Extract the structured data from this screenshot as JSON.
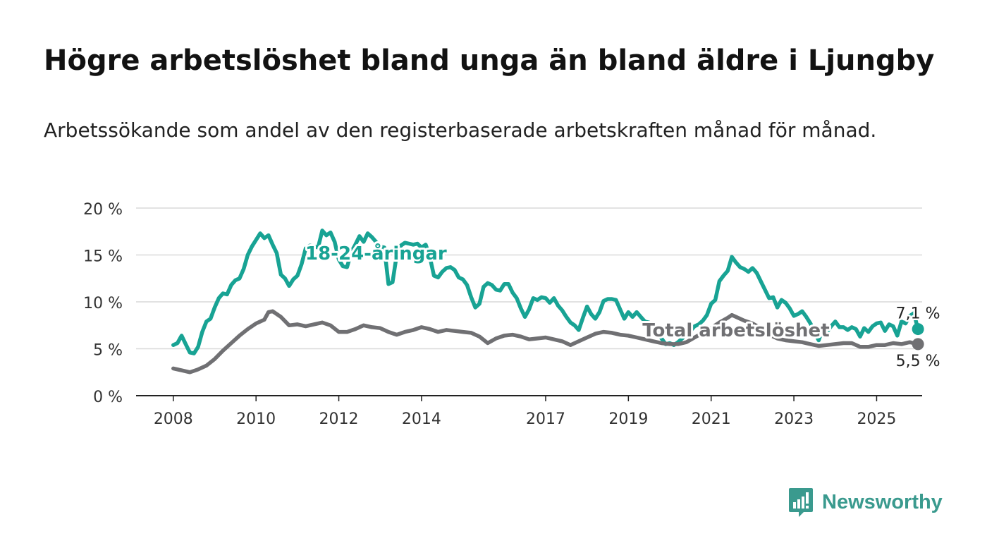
{
  "title": "Högre arbetslöshet bland unga än bland äldre i Ljungby",
  "subtitle": "Arbetssökande som andel av den registerbaserade arbetskraften månad för månad.",
  "brand": {
    "name": "Newsworthy",
    "icon": "bar-chart-speech-bubble-icon",
    "color": "#3a9a8e"
  },
  "chart_data": {
    "type": "line",
    "y_unit": "%",
    "ylim": [
      0,
      20
    ],
    "y_ticks": [
      {
        "value": 0,
        "label": "0 %"
      },
      {
        "value": 5,
        "label": "5 %"
      },
      {
        "value": 10,
        "label": "10 %"
      },
      {
        "value": 15,
        "label": "15 %"
      },
      {
        "value": 20,
        "label": "20 %"
      }
    ],
    "xlim": [
      2007.1,
      2026.1
    ],
    "x_ticks": [
      {
        "value": 2008,
        "label": "2008"
      },
      {
        "value": 2010,
        "label": "2010"
      },
      {
        "value": 2012,
        "label": "2012"
      },
      {
        "value": 2014,
        "label": "2014"
      },
      {
        "value": 2017,
        "label": "2017"
      },
      {
        "value": 2019,
        "label": "2019"
      },
      {
        "value": 2021,
        "label": "2021"
      },
      {
        "value": 2023,
        "label": "2023"
      },
      {
        "value": 2025,
        "label": "2025"
      }
    ],
    "grid": true,
    "series": [
      {
        "name": "18-24-åringar",
        "color": "#18a394",
        "label_at": {
          "x": 2012.9,
          "y": 14.5
        },
        "end_label": "7,1 %",
        "end_value": 7.1,
        "points": [
          [
            2008.0,
            5.4
          ],
          [
            2008.1,
            5.6
          ],
          [
            2008.2,
            6.4
          ],
          [
            2008.3,
            5.5
          ],
          [
            2008.4,
            4.6
          ],
          [
            2008.5,
            4.5
          ],
          [
            2008.6,
            5.2
          ],
          [
            2008.7,
            6.8
          ],
          [
            2008.8,
            7.9
          ],
          [
            2008.9,
            8.2
          ],
          [
            2009.0,
            9.4
          ],
          [
            2009.1,
            10.4
          ],
          [
            2009.2,
            10.9
          ],
          [
            2009.3,
            10.8
          ],
          [
            2009.4,
            11.8
          ],
          [
            2009.5,
            12.3
          ],
          [
            2009.6,
            12.5
          ],
          [
            2009.7,
            13.5
          ],
          [
            2009.8,
            15.0
          ],
          [
            2009.9,
            15.9
          ],
          [
            2010.0,
            16.6
          ],
          [
            2010.1,
            17.3
          ],
          [
            2010.2,
            16.8
          ],
          [
            2010.3,
            17.1
          ],
          [
            2010.4,
            16.1
          ],
          [
            2010.5,
            15.2
          ],
          [
            2010.6,
            12.9
          ],
          [
            2010.7,
            12.5
          ],
          [
            2010.8,
            11.7
          ],
          [
            2010.9,
            12.4
          ],
          [
            2011.0,
            12.8
          ],
          [
            2011.1,
            14.0
          ],
          [
            2011.2,
            15.7
          ],
          [
            2011.3,
            16.0
          ],
          [
            2011.4,
            15.9
          ],
          [
            2011.5,
            15.8
          ],
          [
            2011.6,
            17.6
          ],
          [
            2011.7,
            17.1
          ],
          [
            2011.8,
            17.4
          ],
          [
            2011.9,
            16.4
          ],
          [
            2012.0,
            14.5
          ],
          [
            2012.1,
            13.8
          ],
          [
            2012.2,
            13.7
          ],
          [
            2012.3,
            15.3
          ],
          [
            2012.4,
            16.1
          ],
          [
            2012.5,
            17.0
          ],
          [
            2012.6,
            16.4
          ],
          [
            2012.7,
            17.3
          ],
          [
            2012.8,
            16.9
          ],
          [
            2012.9,
            16.4
          ],
          [
            2013.0,
            15.9
          ],
          [
            2013.1,
            15.8
          ],
          [
            2013.2,
            11.9
          ],
          [
            2013.3,
            12.1
          ],
          [
            2013.4,
            15.0
          ],
          [
            2013.5,
            16.0
          ],
          [
            2013.6,
            16.3
          ],
          [
            2013.7,
            16.2
          ],
          [
            2013.8,
            16.1
          ],
          [
            2013.9,
            16.2
          ],
          [
            2014.0,
            15.8
          ],
          [
            2014.1,
            16.1
          ],
          [
            2014.2,
            14.8
          ],
          [
            2014.3,
            12.8
          ],
          [
            2014.4,
            12.6
          ],
          [
            2014.5,
            13.2
          ],
          [
            2014.6,
            13.6
          ],
          [
            2014.7,
            13.7
          ],
          [
            2014.8,
            13.4
          ],
          [
            2014.9,
            12.6
          ],
          [
            2015.0,
            12.4
          ],
          [
            2015.1,
            11.8
          ],
          [
            2015.2,
            10.5
          ],
          [
            2015.3,
            9.4
          ],
          [
            2015.4,
            9.8
          ],
          [
            2015.5,
            11.6
          ],
          [
            2015.6,
            12.0
          ],
          [
            2015.7,
            11.8
          ],
          [
            2015.8,
            11.3
          ],
          [
            2015.9,
            11.2
          ],
          [
            2016.0,
            11.9
          ],
          [
            2016.1,
            11.9
          ],
          [
            2016.2,
            11.0
          ],
          [
            2016.3,
            10.4
          ],
          [
            2016.4,
            9.3
          ],
          [
            2016.5,
            8.4
          ],
          [
            2016.6,
            9.2
          ],
          [
            2016.7,
            10.4
          ],
          [
            2016.8,
            10.2
          ],
          [
            2016.9,
            10.5
          ],
          [
            2017.0,
            10.4
          ],
          [
            2017.1,
            9.9
          ],
          [
            2017.2,
            10.4
          ],
          [
            2017.3,
            9.6
          ],
          [
            2017.4,
            9.1
          ],
          [
            2017.5,
            8.4
          ],
          [
            2017.6,
            7.8
          ],
          [
            2017.7,
            7.5
          ],
          [
            2017.8,
            7.0
          ],
          [
            2017.9,
            8.3
          ],
          [
            2018.0,
            9.5
          ],
          [
            2018.1,
            8.7
          ],
          [
            2018.2,
            8.2
          ],
          [
            2018.3,
            8.9
          ],
          [
            2018.4,
            10.1
          ],
          [
            2018.5,
            10.3
          ],
          [
            2018.6,
            10.3
          ],
          [
            2018.7,
            10.2
          ],
          [
            2018.8,
            9.2
          ],
          [
            2018.9,
            8.2
          ],
          [
            2019.0,
            8.9
          ],
          [
            2019.1,
            8.4
          ],
          [
            2019.2,
            8.9
          ],
          [
            2019.3,
            8.4
          ],
          [
            2019.4,
            7.9
          ],
          [
            2019.5,
            7.8
          ],
          [
            2019.6,
            7.5
          ],
          [
            2019.7,
            6.8
          ],
          [
            2019.8,
            6.1
          ],
          [
            2019.9,
            5.5
          ],
          [
            2020.0,
            5.6
          ],
          [
            2020.1,
            5.4
          ],
          [
            2020.2,
            5.7
          ],
          [
            2020.3,
            6.1
          ],
          [
            2020.4,
            6.5
          ],
          [
            2020.5,
            6.9
          ],
          [
            2020.6,
            7.4
          ],
          [
            2020.7,
            7.6
          ],
          [
            2020.8,
            8.0
          ],
          [
            2020.9,
            8.6
          ],
          [
            2021.0,
            9.8
          ],
          [
            2021.1,
            10.2
          ],
          [
            2021.2,
            12.2
          ],
          [
            2021.3,
            12.8
          ],
          [
            2021.4,
            13.3
          ],
          [
            2021.5,
            14.8
          ],
          [
            2021.6,
            14.2
          ],
          [
            2021.7,
            13.7
          ],
          [
            2021.8,
            13.5
          ],
          [
            2021.9,
            13.2
          ],
          [
            2022.0,
            13.6
          ],
          [
            2022.1,
            13.1
          ],
          [
            2022.2,
            12.2
          ],
          [
            2022.3,
            11.3
          ],
          [
            2022.4,
            10.4
          ],
          [
            2022.5,
            10.5
          ],
          [
            2022.6,
            9.4
          ],
          [
            2022.7,
            10.2
          ],
          [
            2022.8,
            9.9
          ],
          [
            2022.9,
            9.3
          ],
          [
            2023.0,
            8.5
          ],
          [
            2023.1,
            8.7
          ],
          [
            2023.2,
            9.0
          ],
          [
            2023.3,
            8.4
          ],
          [
            2023.4,
            7.7
          ],
          [
            2023.5,
            6.7
          ],
          [
            2023.6,
            5.9
          ],
          [
            2023.7,
            7.2
          ],
          [
            2023.8,
            6.8
          ],
          [
            2023.9,
            7.4
          ],
          [
            2024.0,
            7.9
          ],
          [
            2024.1,
            7.3
          ],
          [
            2024.2,
            7.3
          ],
          [
            2024.3,
            7.0
          ],
          [
            2024.4,
            7.3
          ],
          [
            2024.5,
            7.1
          ],
          [
            2024.6,
            6.3
          ],
          [
            2024.7,
            7.2
          ],
          [
            2024.8,
            6.8
          ],
          [
            2024.9,
            7.4
          ],
          [
            2025.0,
            7.7
          ],
          [
            2025.1,
            7.8
          ],
          [
            2025.2,
            6.9
          ],
          [
            2025.3,
            7.6
          ],
          [
            2025.4,
            7.4
          ],
          [
            2025.5,
            6.4
          ],
          [
            2025.6,
            7.9
          ],
          [
            2025.7,
            7.7
          ],
          [
            2025.8,
            8.5
          ],
          [
            2025.9,
            8.8
          ],
          [
            2026.0,
            7.1
          ]
        ]
      },
      {
        "name": "Total arbetslöshet",
        "color": "#707073",
        "label_at": {
          "x": 2021.6,
          "y": 6.3
        },
        "end_label": "5,5 %",
        "end_value": 5.5,
        "points": [
          [
            2008.0,
            2.9
          ],
          [
            2008.2,
            2.7
          ],
          [
            2008.4,
            2.5
          ],
          [
            2008.6,
            2.8
          ],
          [
            2008.8,
            3.2
          ],
          [
            2009.0,
            3.9
          ],
          [
            2009.2,
            4.8
          ],
          [
            2009.4,
            5.6
          ],
          [
            2009.6,
            6.4
          ],
          [
            2009.8,
            7.1
          ],
          [
            2010.0,
            7.7
          ],
          [
            2010.2,
            8.1
          ],
          [
            2010.3,
            8.9
          ],
          [
            2010.4,
            9.0
          ],
          [
            2010.6,
            8.4
          ],
          [
            2010.8,
            7.5
          ],
          [
            2011.0,
            7.6
          ],
          [
            2011.2,
            7.4
          ],
          [
            2011.4,
            7.6
          ],
          [
            2011.6,
            7.8
          ],
          [
            2011.8,
            7.5
          ],
          [
            2012.0,
            6.8
          ],
          [
            2012.2,
            6.8
          ],
          [
            2012.4,
            7.1
          ],
          [
            2012.6,
            7.5
          ],
          [
            2012.8,
            7.3
          ],
          [
            2013.0,
            7.2
          ],
          [
            2013.2,
            6.8
          ],
          [
            2013.4,
            6.5
          ],
          [
            2013.6,
            6.8
          ],
          [
            2013.8,
            7.0
          ],
          [
            2014.0,
            7.3
          ],
          [
            2014.2,
            7.1
          ],
          [
            2014.4,
            6.8
          ],
          [
            2014.6,
            7.0
          ],
          [
            2014.8,
            6.9
          ],
          [
            2015.0,
            6.8
          ],
          [
            2015.2,
            6.7
          ],
          [
            2015.4,
            6.3
          ],
          [
            2015.6,
            5.6
          ],
          [
            2015.8,
            6.1
          ],
          [
            2016.0,
            6.4
          ],
          [
            2016.2,
            6.5
          ],
          [
            2016.4,
            6.3
          ],
          [
            2016.6,
            6.0
          ],
          [
            2016.8,
            6.1
          ],
          [
            2017.0,
            6.2
          ],
          [
            2017.2,
            6.0
          ],
          [
            2017.4,
            5.8
          ],
          [
            2017.6,
            5.4
          ],
          [
            2017.8,
            5.8
          ],
          [
            2018.0,
            6.2
          ],
          [
            2018.2,
            6.6
          ],
          [
            2018.4,
            6.8
          ],
          [
            2018.6,
            6.7
          ],
          [
            2018.8,
            6.5
          ],
          [
            2019.0,
            6.4
          ],
          [
            2019.2,
            6.2
          ],
          [
            2019.4,
            6.0
          ],
          [
            2019.6,
            5.8
          ],
          [
            2019.8,
            5.6
          ],
          [
            2020.0,
            5.5
          ],
          [
            2020.2,
            5.5
          ],
          [
            2020.4,
            5.7
          ],
          [
            2020.6,
            6.2
          ],
          [
            2020.8,
            6.7
          ],
          [
            2021.0,
            7.2
          ],
          [
            2021.2,
            7.8
          ],
          [
            2021.4,
            8.3
          ],
          [
            2021.5,
            8.6
          ],
          [
            2021.6,
            8.4
          ],
          [
            2021.8,
            8.0
          ],
          [
            2022.0,
            7.7
          ],
          [
            2022.2,
            7.2
          ],
          [
            2022.4,
            6.5
          ],
          [
            2022.6,
            6.1
          ],
          [
            2022.8,
            5.9
          ],
          [
            2023.0,
            5.8
          ],
          [
            2023.2,
            5.7
          ],
          [
            2023.4,
            5.5
          ],
          [
            2023.6,
            5.3
          ],
          [
            2023.8,
            5.4
          ],
          [
            2024.0,
            5.5
          ],
          [
            2024.2,
            5.6
          ],
          [
            2024.4,
            5.6
          ],
          [
            2024.6,
            5.2
          ],
          [
            2024.8,
            5.2
          ],
          [
            2025.0,
            5.4
          ],
          [
            2025.2,
            5.4
          ],
          [
            2025.4,
            5.6
          ],
          [
            2025.6,
            5.5
          ],
          [
            2025.8,
            5.7
          ],
          [
            2026.0,
            5.5
          ]
        ]
      }
    ]
  }
}
